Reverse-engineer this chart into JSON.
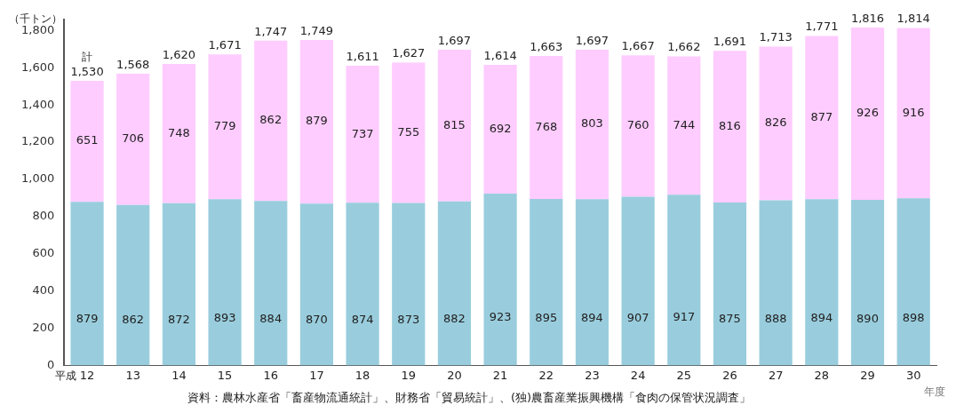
{
  "chart_data": {
    "type": "bar",
    "stacked": true,
    "ylabel": "（千トン）",
    "xlabel": "年度",
    "categories": [
      "12",
      "13",
      "14",
      "15",
      "16",
      "17",
      "18",
      "19",
      "20",
      "21",
      "22",
      "23",
      "24",
      "25",
      "26",
      "27",
      "28",
      "29",
      "30"
    ],
    "series": [
      {
        "color": "#99cddd",
        "values": [
          879,
          862,
          872,
          893,
          884,
          870,
          874,
          873,
          882,
          923,
          895,
          894,
          907,
          917,
          875,
          888,
          894,
          890,
          898
        ]
      },
      {
        "color": "#ffccff",
        "values": [
          651,
          706,
          748,
          779,
          862,
          879,
          737,
          755,
          815,
          692,
          768,
          803,
          760,
          744,
          816,
          826,
          877,
          926,
          916
        ]
      }
    ],
    "totals": [
      "1,530",
      "1,568",
      "1,620",
      "1,671",
      "1,747",
      "1,749",
      "1,611",
      "1,627",
      "1,697",
      "1,614",
      "1,663",
      "1,697",
      "1,667",
      "1,662",
      "1,691",
      "1,713",
      "1,771",
      "1,816",
      "1,814"
    ],
    "data_labels": true,
    "ylim": [
      0,
      1860
    ],
    "yticks": [
      {
        "value": 0,
        "label": "0"
      },
      {
        "value": 200,
        "label": "200"
      },
      {
        "value": 400,
        "label": "400"
      },
      {
        "value": 600,
        "label": "600"
      },
      {
        "value": 800,
        "label": "800"
      },
      {
        "value": 1000,
        "label": "1,000"
      },
      {
        "value": 1200,
        "label": "1,200"
      },
      {
        "value": 1400,
        "label": "1,400"
      },
      {
        "value": 1600,
        "label": "1,600"
      },
      {
        "value": 1800,
        "label": "1,800"
      }
    ],
    "grid": false,
    "legend": false,
    "annotations": [
      {
        "text": "計",
        "x": "12",
        "y": 1530
      },
      "平成",
      "資料：農林水産省「畜産物流通統計」、財務省「貿易統計」、(独)農畜産業振興機構「食肉の保管状況調査」"
    ]
  }
}
